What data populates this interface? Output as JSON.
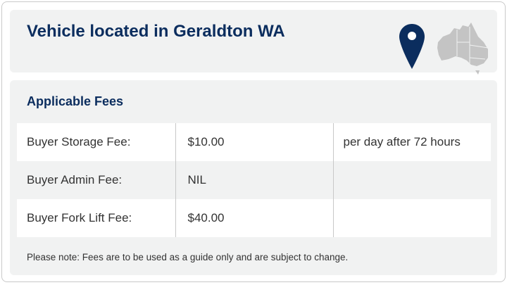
{
  "header": {
    "title": "Vehicle located in Geraldton WA",
    "pin_icon": "map-pin-icon",
    "map_icon": "australia-map-icon",
    "accent": "#0b2d5e"
  },
  "fees": {
    "title": "Applicable Fees",
    "rows": [
      {
        "label": "Buyer Storage Fee:",
        "amount": "$10.00",
        "note": "per day after 72 hours"
      },
      {
        "label": "Buyer Admin Fee:",
        "amount": "NIL",
        "note": ""
      },
      {
        "label": "Buyer Fork Lift Fee:",
        "amount": "$40.00",
        "note": ""
      }
    ],
    "disclaimer": "Please note: Fees are to be used as a guide only and are subject to change."
  }
}
